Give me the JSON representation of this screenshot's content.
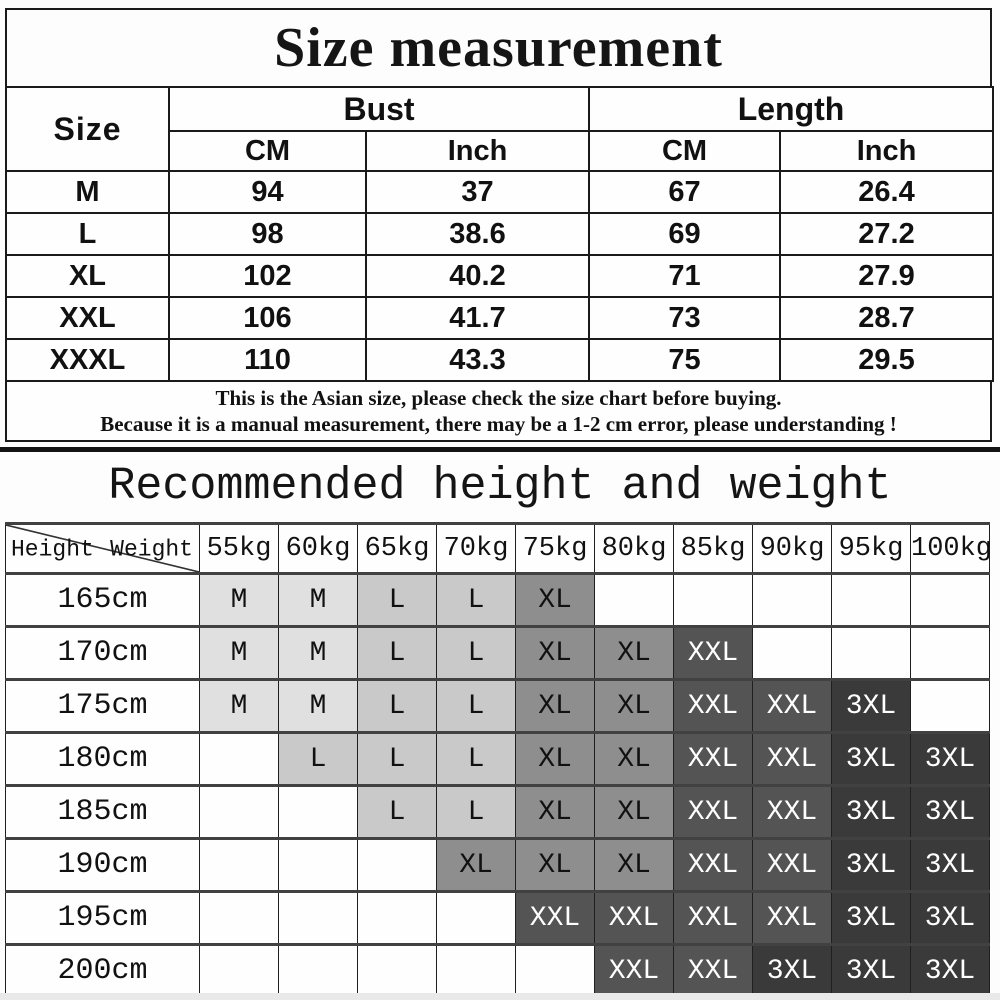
{
  "title": "Size measurement",
  "size_table": {
    "headers": {
      "size": "Size",
      "bust": "Bust",
      "length": "Length",
      "cm": "CM",
      "inch": "Inch"
    },
    "rows": [
      {
        "size": "M",
        "bust_cm": "94",
        "bust_inch": "37",
        "length_cm": "67",
        "length_inch": "26.4"
      },
      {
        "size": "L",
        "bust_cm": "98",
        "bust_inch": "38.6",
        "length_cm": "69",
        "length_inch": "27.2"
      },
      {
        "size": "XL",
        "bust_cm": "102",
        "bust_inch": "40.2",
        "length_cm": "71",
        "length_inch": "27.9"
      },
      {
        "size": "XXL",
        "bust_cm": "106",
        "bust_inch": "41.7",
        "length_cm": "73",
        "length_inch": "28.7"
      },
      {
        "size": "XXXL",
        "bust_cm": "110",
        "bust_inch": "43.3",
        "length_cm": "75",
        "length_inch": "29.5"
      }
    ]
  },
  "note": {
    "line1": "This is the Asian size, please check the size chart before buying.",
    "line2": "Because it is a manual measurement, there may be a 1-2 cm error, please understanding !"
  },
  "recommend": {
    "title": "Recommended height and weight",
    "corner": {
      "height_label": "Height",
      "weight_label": "Weight"
    },
    "weights": [
      "55kg",
      "60kg",
      "65kg",
      "70kg",
      "75kg",
      "80kg",
      "85kg",
      "90kg",
      "95kg",
      "100kg"
    ],
    "heights": [
      "165cm",
      "170cm",
      "175cm",
      "180cm",
      "185cm",
      "190cm",
      "195cm",
      "200cm"
    ],
    "matrix": [
      [
        "M",
        "M",
        "L",
        "L",
        "XL",
        "",
        "",
        "",
        "",
        ""
      ],
      [
        "M",
        "M",
        "L",
        "L",
        "XL",
        "XL",
        "XXL",
        "",
        "",
        ""
      ],
      [
        "M",
        "M",
        "L",
        "L",
        "XL",
        "XL",
        "XXL",
        "XXL",
        "3XL",
        ""
      ],
      [
        "",
        "L",
        "L",
        "L",
        "XL",
        "XL",
        "XXL",
        "XXL",
        "3XL",
        "3XL"
      ],
      [
        "",
        "",
        "L",
        "L",
        "XL",
        "XL",
        "XXL",
        "XXL",
        "3XL",
        "3XL"
      ],
      [
        "",
        "",
        "",
        "XL",
        "XL",
        "XL",
        "XXL",
        "XXL",
        "3XL",
        "3XL"
      ],
      [
        "",
        "",
        "",
        "",
        "XXL",
        "XXL",
        "XXL",
        "XXL",
        "3XL",
        "3XL"
      ],
      [
        "",
        "",
        "",
        "",
        "",
        "XXL",
        "XXL",
        "3XL",
        "3XL",
        "3XL"
      ]
    ],
    "cell_colors": {
      "M": "#e0e0e0",
      "L": "#c9c9c9",
      "XL": "#8e8e8e",
      "XXL": "#545454",
      "3XL": "#3a3a3a"
    },
    "text_colors": {
      "M": "#111111",
      "L": "#111111",
      "XL": "#111111",
      "XXL": "#ffffff",
      "3XL": "#ffffff"
    }
  }
}
